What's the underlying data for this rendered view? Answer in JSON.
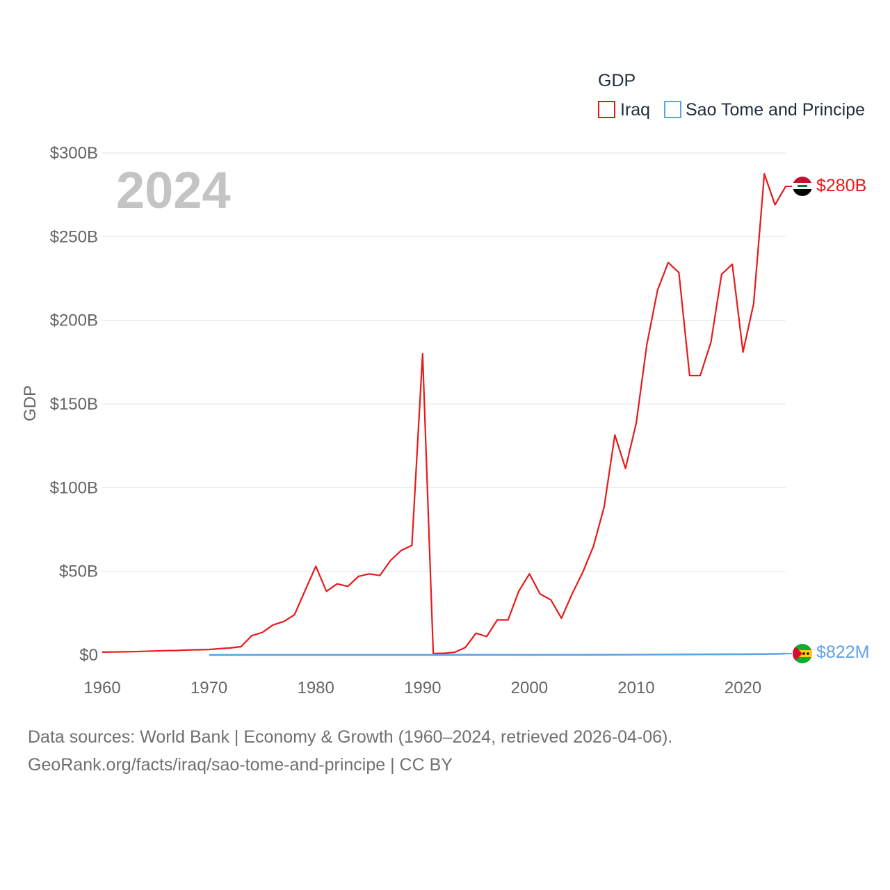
{
  "chart_data": {
    "type": "line",
    "legend_title": "GDP",
    "ylabel": "GDP",
    "xlabel": "",
    "year_watermark": "2024",
    "xlim": [
      1960,
      2024
    ],
    "ylim": [
      0,
      300
    ],
    "y_unit": "billion USD",
    "x_ticks": [
      1960,
      1970,
      1980,
      1990,
      2000,
      2010,
      2020
    ],
    "x_tick_labels": [
      "1960",
      "1970",
      "1980",
      "1990",
      "2000",
      "2010",
      "2020"
    ],
    "y_ticks": [
      0,
      50,
      100,
      150,
      200,
      250,
      300
    ],
    "y_tick_labels": [
      "$0",
      "$50B",
      "$100B",
      "$150B",
      "$200B",
      "$250B",
      "$300B"
    ],
    "grid": true,
    "legend_position": "top-right",
    "series": [
      {
        "name": "Iraq",
        "color": "#e8191a",
        "flag_icon": "iraq-flag-icon",
        "end_label": "$280B",
        "x": [
          1960,
          1961,
          1962,
          1963,
          1964,
          1965,
          1966,
          1967,
          1968,
          1969,
          1970,
          1971,
          1972,
          1973,
          1974,
          1975,
          1976,
          1977,
          1978,
          1979,
          1980,
          1981,
          1982,
          1983,
          1984,
          1985,
          1986,
          1987,
          1988,
          1989,
          1990,
          1991,
          1992,
          1993,
          1994,
          1995,
          1996,
          1997,
          1998,
          1999,
          2000,
          2001,
          2002,
          2003,
          2004,
          2005,
          2006,
          2007,
          2008,
          2009,
          2010,
          2011,
          2012,
          2013,
          2014,
          2015,
          2016,
          2017,
          2018,
          2019,
          2020,
          2021,
          2022,
          2023,
          2024
        ],
        "values": [
          1.7,
          1.8,
          1.9,
          2.0,
          2.2,
          2.4,
          2.6,
          2.7,
          3.0,
          3.1,
          3.3,
          3.8,
          4.2,
          5.0,
          11.5,
          13.5,
          18.0,
          20.0,
          24.0,
          38.5,
          53.0,
          38.0,
          42.5,
          41.0,
          47.0,
          48.5,
          47.5,
          56.5,
          62.5,
          65.5,
          180.0,
          0.9,
          1.0,
          1.6,
          4.5,
          13.0,
          11.0,
          21.0,
          21.0,
          38.0,
          48.5,
          36.5,
          33.0,
          22.0,
          36.5,
          49.5,
          65.0,
          88.5,
          131.5,
          111.5,
          138.5,
          185.5,
          218.0,
          234.5,
          228.5,
          167.0,
          167.0,
          187.0,
          227.5,
          233.5,
          181.0,
          210.0,
          287.5,
          269.0,
          280.0
        ]
      },
      {
        "name": "Sao Tome and Principe",
        "color": "#5ea3e6",
        "flag_icon": "sao-tome-flag-icon",
        "end_label": "$822M",
        "x": [
          1970,
          1975,
          1980,
          1985,
          1990,
          1995,
          2000,
          2005,
          2010,
          2015,
          2020,
          2022,
          2023,
          2024
        ],
        "values": [
          0.06,
          0.07,
          0.08,
          0.09,
          0.1,
          0.12,
          0.08,
          0.13,
          0.2,
          0.32,
          0.47,
          0.55,
          0.64,
          0.82
        ]
      }
    ]
  },
  "source": {
    "line1": "Data sources: World Bank | Economy & Growth (1960–2024, retrieved 2026-04-06).",
    "line2": "GeoRank.org/facts/iraq/sao-tome-and-principe | CC BY"
  }
}
